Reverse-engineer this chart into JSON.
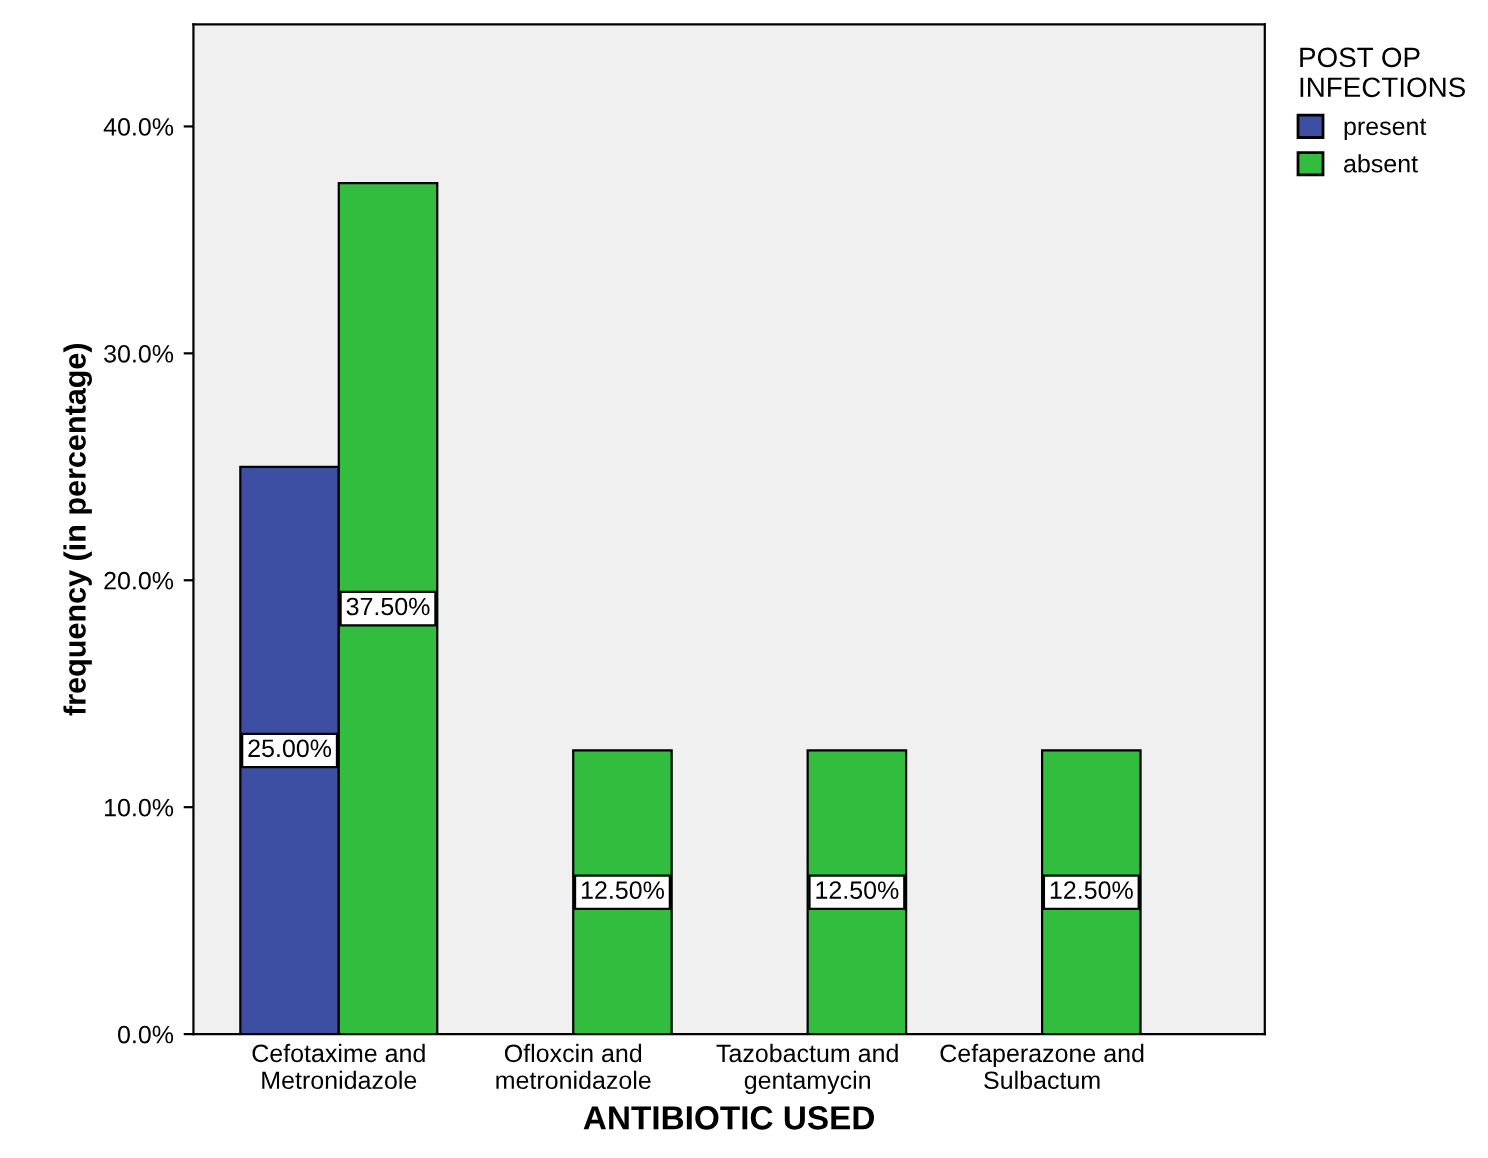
{
  "chart_data": {
    "type": "bar",
    "categories": [
      "Cefotaxime and\nMetronidazole",
      "Ofloxcin and\nmetronidazole",
      "Tazobactum and\ngentamycin",
      "Cefaperazone and\nSulbactum"
    ],
    "series": [
      {
        "name": "present",
        "color": "#3d4fa3",
        "values": [
          25.0,
          null,
          null,
          null
        ],
        "value_labels": [
          "25.00%",
          null,
          null,
          null
        ]
      },
      {
        "name": "absent",
        "color": "#33bd3f",
        "values": [
          37.5,
          12.5,
          12.5,
          12.5
        ],
        "value_labels": [
          "37.50%",
          "12.50%",
          "12.50%",
          "12.50%"
        ]
      }
    ],
    "xlabel": "ANTIBIOTIC USED",
    "ylabel": "frequency (in percentage)",
    "legend_title": "POST OP\nINFECTIONS",
    "ylim": [
      0,
      44.5
    ],
    "yticks": [
      {
        "value": 0,
        "label": "0.0%"
      },
      {
        "value": 10,
        "label": "10.0%"
      },
      {
        "value": 20,
        "label": "20.0%"
      },
      {
        "value": 30,
        "label": "30.0%"
      },
      {
        "value": 40,
        "label": "40.0%"
      }
    ],
    "legend": "right",
    "grid": false
  }
}
